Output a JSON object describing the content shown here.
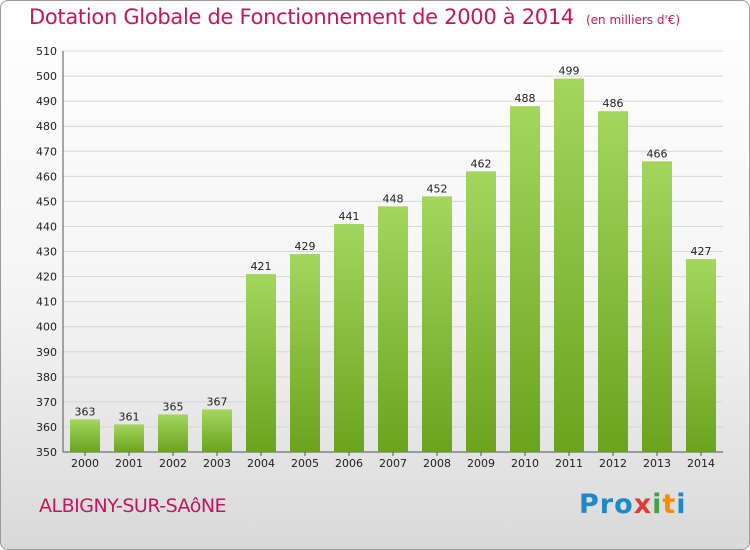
{
  "title": "Dotation Globale de Fonctionnement de 2000 à 2014",
  "subtitle": "(en milliers d'€)",
  "place": "ALBIGNY-SUR-SAôNE",
  "logo": {
    "text": "Proxiti",
    "letters": [
      "P",
      "r",
      "o",
      "x",
      "i",
      "t",
      "i"
    ],
    "colors": [
      "#1e88c8",
      "#1e88c8",
      "#1e88c8",
      "#e53935",
      "#43a047",
      "#fb8c00",
      "#1e88c8"
    ]
  },
  "colors": {
    "title": "#c2185b",
    "bar_light": "#a4d65e",
    "bar_dark": "#6aa41e"
  },
  "chart_data": {
    "type": "bar",
    "title": "Dotation Globale de Fonctionnement de 2000 à 2014",
    "subtitle": "(en milliers d'€)",
    "categories": [
      "2000",
      "2001",
      "2002",
      "2003",
      "2004",
      "2005",
      "2006",
      "2007",
      "2008",
      "2009",
      "2010",
      "2011",
      "2012",
      "2013",
      "2014"
    ],
    "values": [
      363,
      361,
      365,
      367,
      421,
      429,
      441,
      448,
      452,
      462,
      488,
      499,
      486,
      466,
      427
    ],
    "ylim": [
      350,
      510
    ],
    "yticks": [
      350,
      360,
      370,
      380,
      390,
      400,
      410,
      420,
      430,
      440,
      450,
      460,
      470,
      480,
      490,
      500,
      510
    ],
    "grid": true,
    "xlabel": "",
    "ylabel": ""
  }
}
